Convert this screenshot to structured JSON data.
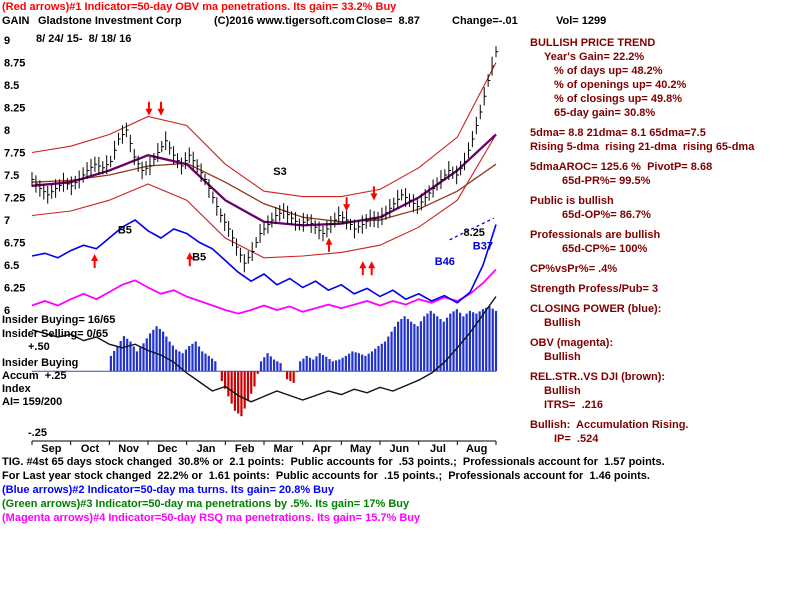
{
  "header": {
    "indicator_line": "(Red arrows)#1 Indicator=50-day OBV ma penetrations. Its gain= 33.2% Buy",
    "ticker": "GAIN",
    "company": "Gladstone Investment Corp",
    "copyright": "(C)2016 www.tigersoft.com",
    "close": "Close=  8.87",
    "change": "Change=-.01",
    "volume": "Vol= 1299",
    "date_range": "8/ 24/ 15-  8/ 18/ 16"
  },
  "left_panel": {
    "insider_buying": "Insider Buying= 16/65",
    "insider_selling": "Insider Selling= 0/65",
    "plus_50": "+.50",
    "accum_label_1": "Insider Buying",
    "accum_label_2": "Accum  +.25",
    "accum_label_3": "Index",
    "accum_label_4": "AI= 159/200",
    "minus_25": "-.25"
  },
  "right_panel": {
    "color": "#800000",
    "lines": [
      {
        "text": "BULLISH PRICE TREND",
        "indent": 0
      },
      {
        "text": "Year's Gain= 22.2%",
        "indent": 1
      },
      {
        "text": "% of days up= 48.2%",
        "indent": 2
      },
      {
        "text": "% of openings up= 40.2%",
        "indent": 2
      },
      {
        "text": "% of closings up= 49.8%",
        "indent": 2
      },
      {
        "text": "65-day gain= 30.8%",
        "indent": 2
      },
      {
        "text": "5dma= 8.8 21dma= 8.1 65dma=7.5",
        "indent": 0,
        "gap": true
      },
      {
        "text": "Rising 5-dma  rising 21-dma  rising 65-dma",
        "indent": 0
      },
      {
        "text": "5dmaAROC= 125.6 %  PivotP= 8.68",
        "indent": 0,
        "gap": true
      },
      {
        "text": "65d-PR%= 99.5%",
        "indent": 3
      },
      {
        "text": "Public is bullish",
        "indent": 0,
        "gap": true
      },
      {
        "text": "65d-OP%= 86.7%",
        "indent": 3
      },
      {
        "text": "Professionals are bullish",
        "indent": 0,
        "gap": true
      },
      {
        "text": "65d-CP%= 100%",
        "indent": 3
      },
      {
        "text": "CP%vsPr%= .4%",
        "indent": 0,
        "gap": true
      },
      {
        "text": "Strength Profess/Pub= 3",
        "indent": 0,
        "gap": true
      },
      {
        "text": "CLOSING POWER (blue):",
        "indent": 0,
        "gap": true
      },
      {
        "text": "Bullish",
        "indent": 1
      },
      {
        "text": "OBV (magenta):",
        "indent": 0,
        "gap": true
      },
      {
        "text": "Bullish",
        "indent": 1
      },
      {
        "text": "REL.STR..VS DJI (brown):",
        "indent": 0,
        "gap": true
      },
      {
        "text": "Bullish",
        "indent": 1
      },
      {
        "text": "ITRS=  .216",
        "indent": 1
      },
      {
        "text": "Bullish:  Accumulation Rising.",
        "indent": 0,
        "gap": true
      },
      {
        "text": "IP=  .524",
        "indent": 2
      }
    ]
  },
  "footer": {
    "lines": [
      {
        "text": "TIG. #4st 65 days stock changed  30.8% or  2.1 points:  Public accounts for  .53 points.;  Professionals account for  1.57 points.",
        "color": "#000000"
      },
      {
        "text": "For Last year stock changed  22.2% or  1.61 points:  Public accounts for  .15 points.;  Professionals account for  1.46 points.",
        "color": "#000000"
      },
      {
        "text": "(Blue arrows)#2 Indicator=50-day ma turns. Its gain= 20.8% Buy",
        "color": "#0000ff"
      },
      {
        "text": "(Green arrows)#3 Indicator=50-day ma penetrations by .5%. Its gain= 17% Buy",
        "color": "#008000"
      },
      {
        "text": "(Magenta arrows)#4 Indicator=50-day RSQ ma penetrations. Its gain= 15.7% Buy",
        "color": "#ff00ff"
      }
    ]
  },
  "chart_data": {
    "type": "candlestick",
    "title": "GAIN Gladstone Investment Corp",
    "subtitle": "8/24/15 - 8/18/16",
    "months": [
      "Sep",
      "Oct",
      "Nov",
      "Dec",
      "Jan",
      "Feb",
      "Mar",
      "Apr",
      "May",
      "Jun",
      "Jul",
      "Aug"
    ],
    "price_axis": {
      "min": 6,
      "max": 9,
      "tick_labels": [
        "9",
        "8.75",
        "8.5",
        "8.25",
        "8",
        "7.75",
        "7.5",
        "7.25",
        "7",
        "6.75",
        "6.5",
        "6.25",
        "6"
      ],
      "tick_values": [
        9,
        8.75,
        8.5,
        8.25,
        8,
        7.75,
        7.5,
        7.25,
        7,
        6.75,
        6.5,
        6.25,
        6
      ]
    },
    "series": {
      "price_close": [
        7.45,
        7.35,
        7.28,
        7.35,
        7.42,
        7.38,
        7.45,
        7.55,
        7.62,
        7.58,
        7.65,
        7.9,
        8.0,
        7.7,
        7.55,
        7.6,
        7.75,
        7.88,
        7.72,
        7.6,
        7.72,
        7.6,
        7.45,
        7.25,
        7.05,
        6.9,
        6.7,
        6.52,
        6.65,
        6.85,
        6.95,
        7.05,
        7.1,
        7.02,
        6.95,
        7.0,
        6.92,
        6.85,
        6.95,
        7.05,
        7.0,
        6.9,
        6.95,
        7.02,
        7.0,
        7.08,
        7.18,
        7.28,
        7.22,
        7.15,
        7.25,
        7.35,
        7.45,
        7.55,
        7.5,
        7.65,
        7.9,
        8.2,
        8.55,
        8.87
      ],
      "upper_band": [
        7.75,
        7.82,
        7.95,
        8.15,
        8.05,
        7.62,
        7.32,
        7.26,
        7.26,
        7.34,
        7.58,
        7.92,
        8.75
      ],
      "lower_band": [
        7.05,
        7.1,
        7.22,
        7.4,
        7.22,
        6.8,
        6.58,
        6.6,
        6.64,
        6.72,
        6.92,
        7.22,
        7.95
      ],
      "ma_50_purple": [
        7.38,
        7.42,
        7.55,
        7.72,
        7.62,
        7.22,
        6.98,
        6.94,
        6.96,
        7.03,
        7.25,
        7.55,
        7.95
      ],
      "ma_65_brown": [
        7.42,
        7.44,
        7.5,
        7.6,
        7.63,
        7.42,
        7.18,
        7.03,
        6.98,
        7.0,
        7.12,
        7.32,
        7.62
      ],
      "closing_power_blue": [
        6.6,
        6.63,
        6.58,
        6.66,
        6.72,
        6.68,
        6.8,
        6.92,
        7.0,
        6.88,
        6.8,
        6.9,
        6.85,
        6.75,
        6.68,
        6.55,
        6.42,
        6.32,
        6.4,
        6.28,
        6.35,
        6.25,
        6.32,
        6.22,
        6.28,
        6.18,
        6.24,
        6.15,
        6.22,
        6.12,
        6.18,
        6.1,
        6.16,
        6.08,
        6.2,
        6.5,
        6.95
      ],
      "obv_magenta": [
        6.05,
        6.1,
        6.05,
        6.12,
        6.18,
        6.12,
        6.2,
        6.28,
        6.33,
        6.25,
        6.18,
        6.22,
        6.15,
        6.1,
        6.05,
        6.0,
        5.96,
        6.0,
        6.05,
        6.0,
        6.04,
        5.98,
        6.02,
        6.06,
        6.02,
        6.06,
        6.1,
        6.05,
        6.1,
        6.06,
        6.12,
        6.08,
        6.14,
        6.1,
        6.18,
        6.3,
        6.45
      ],
      "rel_str_black": [
        5.78,
        5.74,
        5.7,
        5.73,
        5.66,
        5.7,
        5.62,
        5.58,
        5.62,
        5.55,
        5.5,
        5.42,
        5.3,
        5.2,
        5.1,
        5.15,
        5.05,
        4.98,
        5.04,
        5.1,
        5.05,
        5.0,
        5.05,
        5.1,
        5.06,
        5.12,
        5.08,
        5.14,
        5.1,
        5.16,
        5.22,
        5.3,
        5.42,
        5.58,
        5.75,
        5.95,
        6.15
      ]
    },
    "histogram": {
      "name": "insider-accumulation-index",
      "start_frac": 0.17,
      "baseline_value": 5.32,
      "values": [
        0.17,
        0.28,
        0.39,
        0.33,
        0.22,
        0.31,
        0.42,
        0.5,
        0.44,
        0.33,
        0.24,
        0.2,
        0.28,
        0.33,
        0.22,
        0.17,
        0.11,
        -0.11,
        -0.28,
        -0.44,
        -0.5,
        -0.33,
        -0.17,
        0.11,
        0.2,
        0.13,
        0.09,
        -0.09,
        -0.13,
        0.11,
        0.17,
        0.13,
        0.2,
        0.16,
        0.11,
        0.13,
        0.17,
        0.22,
        0.2,
        0.17,
        0.22,
        0.28,
        0.33,
        0.44,
        0.55,
        0.61,
        0.55,
        0.5,
        0.61,
        0.67,
        0.61,
        0.55,
        0.64,
        0.69,
        0.61,
        0.67,
        0.64,
        0.69,
        0.72,
        0.67
      ]
    },
    "colors": {
      "price": "#000000",
      "band": "#cc2222",
      "ma50": "#6a006a",
      "ma65": "#8b3a1a",
      "closing_power": "#0000ee",
      "obv": "#ff00ff",
      "rel_str": "#111111",
      "baseline": "#4444cc",
      "hist_pos": "#2233cc",
      "hist_neg": "#cc0000",
      "axis": "#000000"
    },
    "annotations": [
      {
        "text": "S3",
        "f": 0.52,
        "p": 7.5,
        "color": "#000000"
      },
      {
        "text": "B5",
        "f": 0.185,
        "p": 6.85,
        "color": "#000000"
      },
      {
        "text": "B5",
        "f": 0.345,
        "p": 6.55,
        "color": "#000000"
      },
      {
        "text": "B46",
        "f": 0.868,
        "p": 6.5,
        "color": "#0000cc"
      },
      {
        "text": "B37",
        "f": 0.95,
        "p": 6.67,
        "color": "#0000cc"
      },
      {
        "text": "8.25",
        "f": 0.93,
        "p": 6.82,
        "color": "#000000"
      }
    ],
    "arrows": [
      {
        "f": 0.252,
        "p": 8.18,
        "d": "down",
        "c": "#ff0000"
      },
      {
        "f": 0.278,
        "p": 8.18,
        "d": "down",
        "c": "#ff0000"
      },
      {
        "f": 0.678,
        "p": 7.12,
        "d": "down",
        "c": "#ff0000"
      },
      {
        "f": 0.737,
        "p": 7.24,
        "d": "down",
        "c": "#ff0000"
      },
      {
        "f": 0.64,
        "p": 6.78,
        "d": "up",
        "c": "#ff0000"
      },
      {
        "f": 0.713,
        "p": 6.52,
        "d": "up",
        "c": "#ff0000"
      },
      {
        "f": 0.732,
        "p": 6.52,
        "d": "up",
        "c": "#ff0000"
      },
      {
        "f": 0.34,
        "p": 6.62,
        "d": "up",
        "c": "#ff0000"
      },
      {
        "f": 0.135,
        "p": 6.6,
        "d": "up",
        "c": "#ff0000"
      }
    ],
    "dashed_segment": {
      "x1f": 0.9,
      "p1": 6.78,
      "x2f": 0.995,
      "p2": 7.02,
      "color": "#0000ee"
    }
  }
}
